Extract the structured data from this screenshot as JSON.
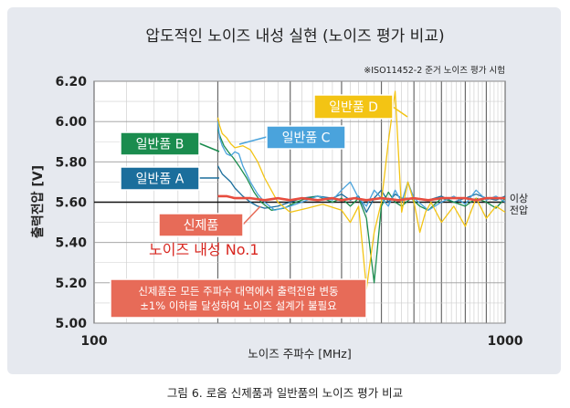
{
  "chart_data": {
    "type": "line",
    "title": "압도적인 노이즈 내성 실현 (노이즈 평가 비교)",
    "note": "※ISO11452-2 준거 노이즈 평가 시험",
    "xlabel": "노이즈 주파수 [MHz]",
    "ylabel": "출력전압 [V]",
    "x_scale": "log",
    "xlim": [
      100,
      1000
    ],
    "ylim": [
      5.0,
      6.2
    ],
    "x_ticks": [
      "100",
      "1000"
    ],
    "y_ticks": [
      "6.20",
      "6.00",
      "5.80",
      "5.60",
      "5.40",
      "5.20",
      "5.00"
    ],
    "reference": {
      "y": 5.6,
      "label": "이상 전압"
    },
    "legend": "callouts",
    "grid": true,
    "series": [
      {
        "name": "일반품 A",
        "color": "#1b6e9c",
        "x": [
          200,
          205,
          210,
          215,
          220,
          230,
          240,
          250,
          260,
          280,
          300,
          320,
          350,
          380,
          400,
          420,
          440,
          460,
          480,
          500,
          520,
          540,
          560,
          600,
          650,
          700,
          750,
          800,
          850,
          900,
          950,
          1000
        ],
        "y": [
          5.78,
          5.74,
          5.72,
          5.7,
          5.67,
          5.63,
          5.6,
          5.58,
          5.57,
          5.58,
          5.6,
          5.62,
          5.63,
          5.62,
          5.64,
          5.61,
          5.63,
          5.55,
          5.62,
          5.66,
          5.6,
          5.64,
          5.62,
          5.62,
          5.61,
          5.63,
          5.6,
          5.62,
          5.64,
          5.62,
          5.61,
          5.63
        ]
      },
      {
        "name": "일반품 B",
        "color": "#1a8c4e",
        "x": [
          200,
          203,
          207,
          212,
          218,
          225,
          235,
          245,
          255,
          270,
          290,
          310,
          330,
          350,
          380,
          400,
          420,
          440,
          460,
          480,
          500,
          520,
          540,
          560,
          590,
          620,
          650,
          700,
          750,
          800,
          850,
          900,
          950,
          1000
        ],
        "y": [
          5.96,
          5.92,
          5.88,
          5.85,
          5.82,
          5.78,
          5.72,
          5.65,
          5.6,
          5.56,
          5.57,
          5.6,
          5.62,
          5.63,
          5.6,
          5.62,
          5.58,
          5.62,
          5.52,
          5.2,
          5.58,
          5.65,
          5.6,
          5.58,
          5.62,
          5.58,
          5.56,
          5.62,
          5.6,
          5.58,
          5.62,
          5.6,
          5.57,
          5.62
        ]
      },
      {
        "name": "일반품 C",
        "color": "#4aa3dc",
        "x": [
          200,
          202,
          205,
          210,
          215,
          220,
          225,
          230,
          240,
          250,
          260,
          275,
          300,
          320,
          350,
          380,
          400,
          420,
          440,
          460,
          480,
          500,
          520,
          540,
          560,
          580,
          600,
          650,
          700,
          750,
          800,
          850,
          900,
          950,
          1000
        ],
        "y": [
          6.0,
          5.92,
          5.88,
          5.84,
          5.83,
          5.85,
          5.84,
          5.78,
          5.7,
          5.64,
          5.6,
          5.56,
          5.58,
          5.6,
          5.63,
          5.61,
          5.66,
          5.7,
          5.62,
          5.58,
          5.66,
          5.62,
          5.58,
          5.66,
          5.6,
          5.7,
          5.62,
          5.56,
          5.6,
          5.63,
          5.59,
          5.66,
          5.61,
          5.63,
          5.6
        ]
      },
      {
        "name": "일반품 D",
        "color": "#f3c414",
        "x": [
          200,
          202,
          205,
          210,
          215,
          220,
          230,
          240,
          250,
          260,
          280,
          300,
          330,
          360,
          400,
          420,
          440,
          460,
          480,
          500,
          520,
          540,
          560,
          580,
          600,
          620,
          640,
          660,
          700,
          750,
          800,
          850,
          900,
          950,
          1000
        ],
        "y": [
          6.02,
          5.98,
          5.94,
          5.92,
          5.89,
          5.87,
          5.88,
          5.86,
          5.8,
          5.72,
          5.6,
          5.55,
          5.57,
          5.59,
          5.56,
          5.5,
          5.58,
          5.17,
          5.45,
          5.6,
          5.9,
          6.15,
          5.55,
          5.7,
          5.6,
          5.45,
          5.55,
          5.6,
          5.5,
          5.58,
          5.48,
          5.62,
          5.52,
          5.58,
          5.55
        ]
      },
      {
        "name": "신제품",
        "color": "#e74d3f",
        "x": [
          200,
          210,
          220,
          240,
          260,
          280,
          300,
          320,
          350,
          380,
          400,
          430,
          460,
          500,
          550,
          600,
          650,
          700,
          750,
          800,
          850,
          900,
          950,
          1000
        ],
        "y": [
          5.63,
          5.63,
          5.62,
          5.62,
          5.61,
          5.62,
          5.61,
          5.62,
          5.61,
          5.62,
          5.61,
          5.62,
          5.61,
          5.62,
          5.61,
          5.62,
          5.61,
          5.62,
          5.62,
          5.62,
          5.61,
          5.62,
          5.62,
          5.62
        ]
      }
    ],
    "callouts": [
      {
        "label": "일반품 D",
        "bg": "#f3c414"
      },
      {
        "label": "일반품 B",
        "bg": "#1a8c4e"
      },
      {
        "label": "일반품 C",
        "bg": "#4aa3dc"
      },
      {
        "label": "일반품 A",
        "bg": "#1b6e9c"
      },
      {
        "label": "신제품",
        "bg": "#e76b58"
      }
    ],
    "annotation": "노이즈 내성 No.1",
    "message_lines": [
      "신제품은 모든 주파수 대역에서 출력전압 변동",
      "±1% 이하를 달성하여 노이즈 설계가 불필요"
    ]
  },
  "caption": "그림 6. 로옴 신제품과 일반품의 노이즈 평가 비교"
}
